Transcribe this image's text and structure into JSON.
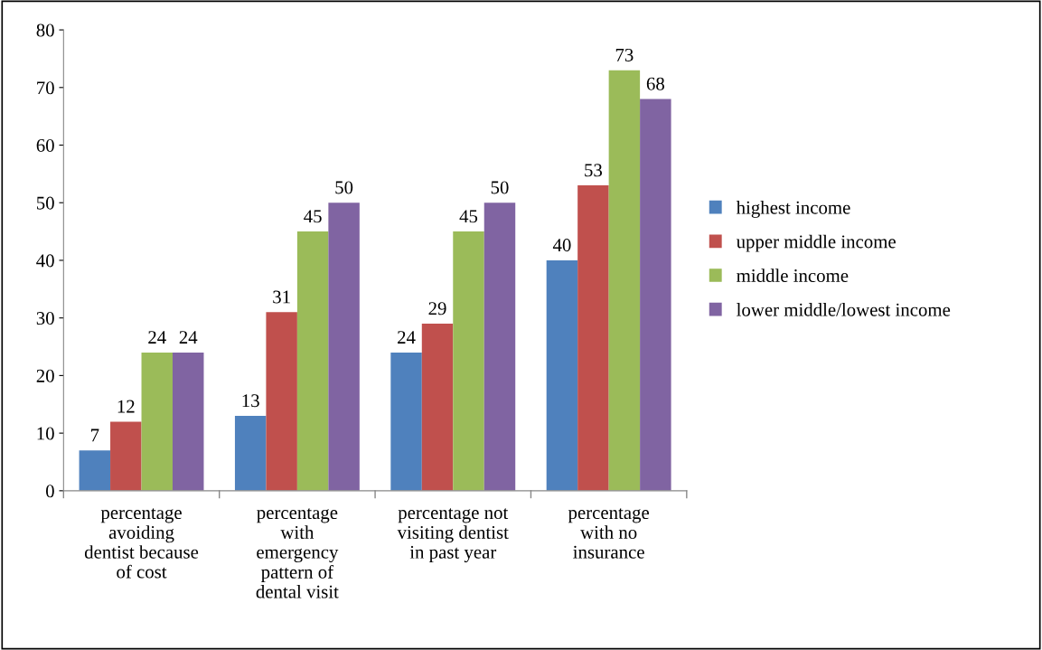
{
  "chart_data": {
    "type": "bar",
    "categories": [
      "percentage\navoiding\ndentist because\nof cost",
      "percentage\nwith\nemergency\npattern of\ndental visit",
      "percentage not\nvisiting dentist\nin past year",
      "percentage\nwith no\ninsurance"
    ],
    "series": [
      {
        "name": "highest income",
        "color": "#4f81bd",
        "values": [
          7,
          13,
          24,
          40
        ]
      },
      {
        "name": "upper middle income",
        "color": "#c0504d",
        "values": [
          12,
          31,
          29,
          53
        ]
      },
      {
        "name": "middle income",
        "color": "#9bbb59",
        "values": [
          24,
          45,
          45,
          73
        ]
      },
      {
        "name": "lower middle/lowest income",
        "color": "#8064a2",
        "values": [
          24,
          50,
          50,
          68
        ]
      }
    ],
    "ylim": [
      0,
      80
    ],
    "yticks": [
      0,
      10,
      20,
      30,
      40,
      50,
      60,
      70,
      80
    ],
    "grid": false,
    "legend": "right",
    "data_labels": true
  }
}
